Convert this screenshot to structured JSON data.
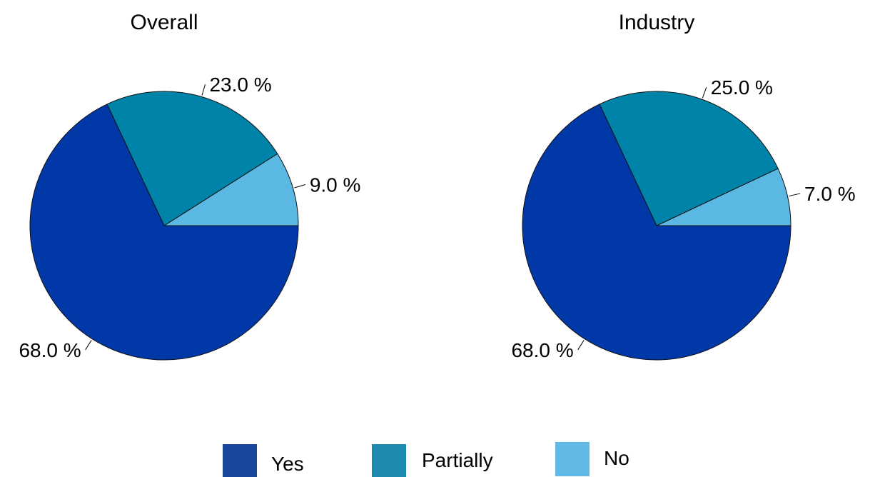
{
  "chart_data": [
    {
      "type": "pie",
      "title": "Overall",
      "slices": [
        {
          "category": "No",
          "value": 9.0,
          "label": "9.0 %"
        },
        {
          "category": "Partially",
          "value": 23.0,
          "label": "23.0 %"
        },
        {
          "category": "Yes",
          "value": 68.0,
          "label": "68.0 %"
        }
      ]
    },
    {
      "type": "pie",
      "title": "Industry",
      "slices": [
        {
          "category": "No",
          "value": 7.0,
          "label": "7.0 %"
        },
        {
          "category": "Partially",
          "value": 25.0,
          "label": "25.0 %"
        },
        {
          "category": "Yes",
          "value": 68.0,
          "label": "68.0 %"
        }
      ]
    }
  ],
  "legend": {
    "placement": "bottom",
    "items": [
      {
        "name": "Yes",
        "color": "#1a46a0"
      },
      {
        "name": "Partially",
        "color": "#1e8ab0"
      },
      {
        "name": "No",
        "color": "#63b9e6"
      }
    ]
  },
  "colors": {
    "Yes": "#0038a8",
    "Partially": "#0083a9",
    "No": "#5bb8e3"
  }
}
